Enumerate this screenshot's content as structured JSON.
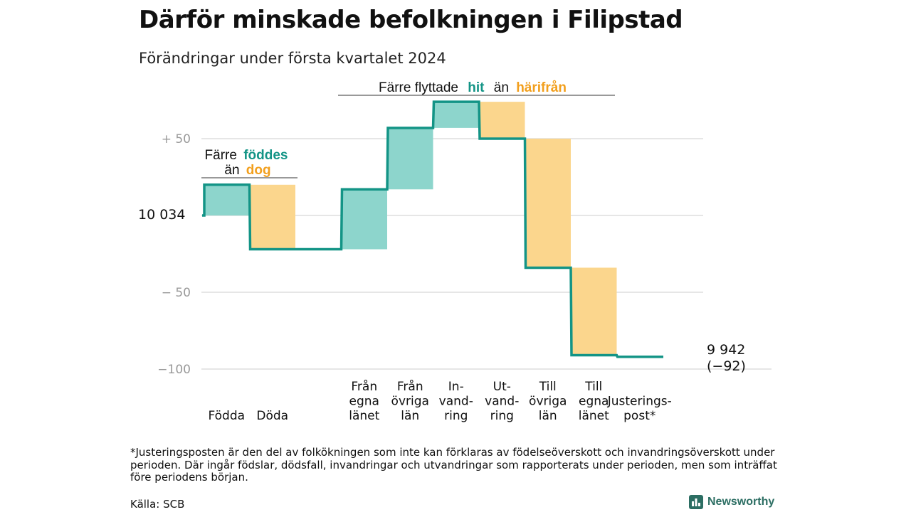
{
  "header": {
    "title": "Därför minskade befolkningen i Filipstad",
    "subtitle": "Förändringar under första kvartalet 2024"
  },
  "annotations": {
    "births_deaths": {
      "prefix": "Färre",
      "highlight1": "föddes",
      "line2_prefix": "än",
      "highlight2": "dog"
    },
    "migration": {
      "prefix": "Färre flyttade",
      "highlight1": "hit",
      "middle": "än",
      "highlight2": "härifrån"
    },
    "start_label": "10 034",
    "end_label": "9 942",
    "end_change": "(−92)"
  },
  "colors": {
    "teal": "#139486",
    "teal_fill": "#8dd5cc",
    "orange": "#f29f1d",
    "orange_fill": "#fbd68d",
    "grid": "#dedede",
    "tick": "#999999"
  },
  "chart_data": {
    "type": "waterfall",
    "baseline": 10034,
    "end_value": 9942,
    "net_change": -92,
    "y_ticks": [
      {
        "value": 50,
        "label": "+  50"
      },
      {
        "value": -50,
        "label": "−  50"
      },
      {
        "value": -100,
        "label": "−100"
      }
    ],
    "ylim": [
      -100,
      75
    ],
    "steps": [
      {
        "label": [
          "Födda"
        ],
        "change": 20,
        "kind": "in"
      },
      {
        "label": [
          "Döda"
        ],
        "change": -42,
        "kind": "out"
      },
      {
        "label": [],
        "change": 0,
        "kind": "gap"
      },
      {
        "label": [
          "Från",
          "egna",
          "länet"
        ],
        "change": 39,
        "kind": "in"
      },
      {
        "label": [
          "Från",
          "övriga",
          "län"
        ],
        "change": 40,
        "kind": "in"
      },
      {
        "label": [
          "In-",
          "vand-",
          "ring"
        ],
        "change": 17,
        "kind": "in"
      },
      {
        "label": [
          "Ut-",
          "vand-",
          "ring"
        ],
        "change": -24,
        "kind": "out"
      },
      {
        "label": [
          "Till",
          "övriga",
          "län"
        ],
        "change": -84,
        "kind": "out"
      },
      {
        "label": [
          "Till",
          "egna",
          "länet"
        ],
        "change": -57,
        "kind": "out"
      },
      {
        "label": [
          "Justerings-",
          "post*"
        ],
        "change": -1,
        "kind": "adjust"
      }
    ]
  },
  "footer": {
    "footnote": "*Justeringsposten är den del av folkökningen som inte kan förklaras av födelseöverskott och invandringsöverskott under perioden. Där ingår födslar, dödsfall, invandringar och utvandringar som rapporterats under perioden, men som inträffat före periodens början.",
    "source": "Källa: SCB",
    "brand": "Newsworthy"
  }
}
